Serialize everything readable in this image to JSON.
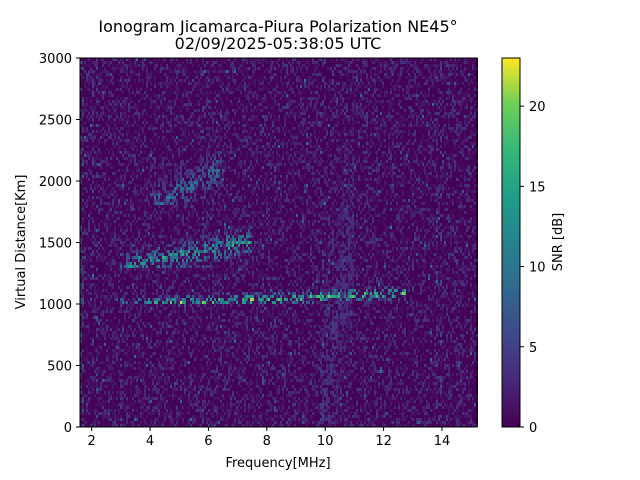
{
  "chart_data": {
    "type": "heatmap",
    "title": "Ionogram Jicamarca-Piura Polarization NE45°",
    "subtitle": "02/09/2025-05:38:05 UTC",
    "xlabel": "Frequency[MHz]",
    "ylabel": "Virtual Distance[Km]",
    "xlim": [
      1.6,
      15.2
    ],
    "ylim": [
      0,
      3000
    ],
    "xticks": [
      2,
      4,
      6,
      8,
      10,
      12,
      14
    ],
    "yticks": [
      0,
      500,
      1000,
      1500,
      2000,
      2500,
      3000
    ],
    "colorbar": {
      "label": "SNR [dB]",
      "colormap": "viridis",
      "range": [
        0,
        23
      ],
      "ticks": [
        0,
        5,
        10,
        15,
        20
      ]
    },
    "grid": false,
    "features": [
      {
        "name": "F-layer primary trace",
        "freq_mhz": [
          2.8,
          12.8
        ],
        "distance_km": [
          990,
          1150
        ],
        "snr_db_peak": 23
      },
      {
        "name": "Second-hop trace",
        "freq_mhz": [
          3.0,
          7.5
        ],
        "distance_km": [
          1300,
          1650
        ],
        "snr_db_peak": 18
      },
      {
        "name": "Diffuse upper echoes",
        "freq_mhz": [
          4.0,
          6.5
        ],
        "distance_km": [
          1800,
          2300
        ],
        "snr_db_peak": 12
      },
      {
        "name": "Interference band",
        "freq_mhz": [
          9.8,
          11.0
        ],
        "distance_km": [
          0,
          3000
        ],
        "snr_db_peak": 5
      }
    ]
  }
}
